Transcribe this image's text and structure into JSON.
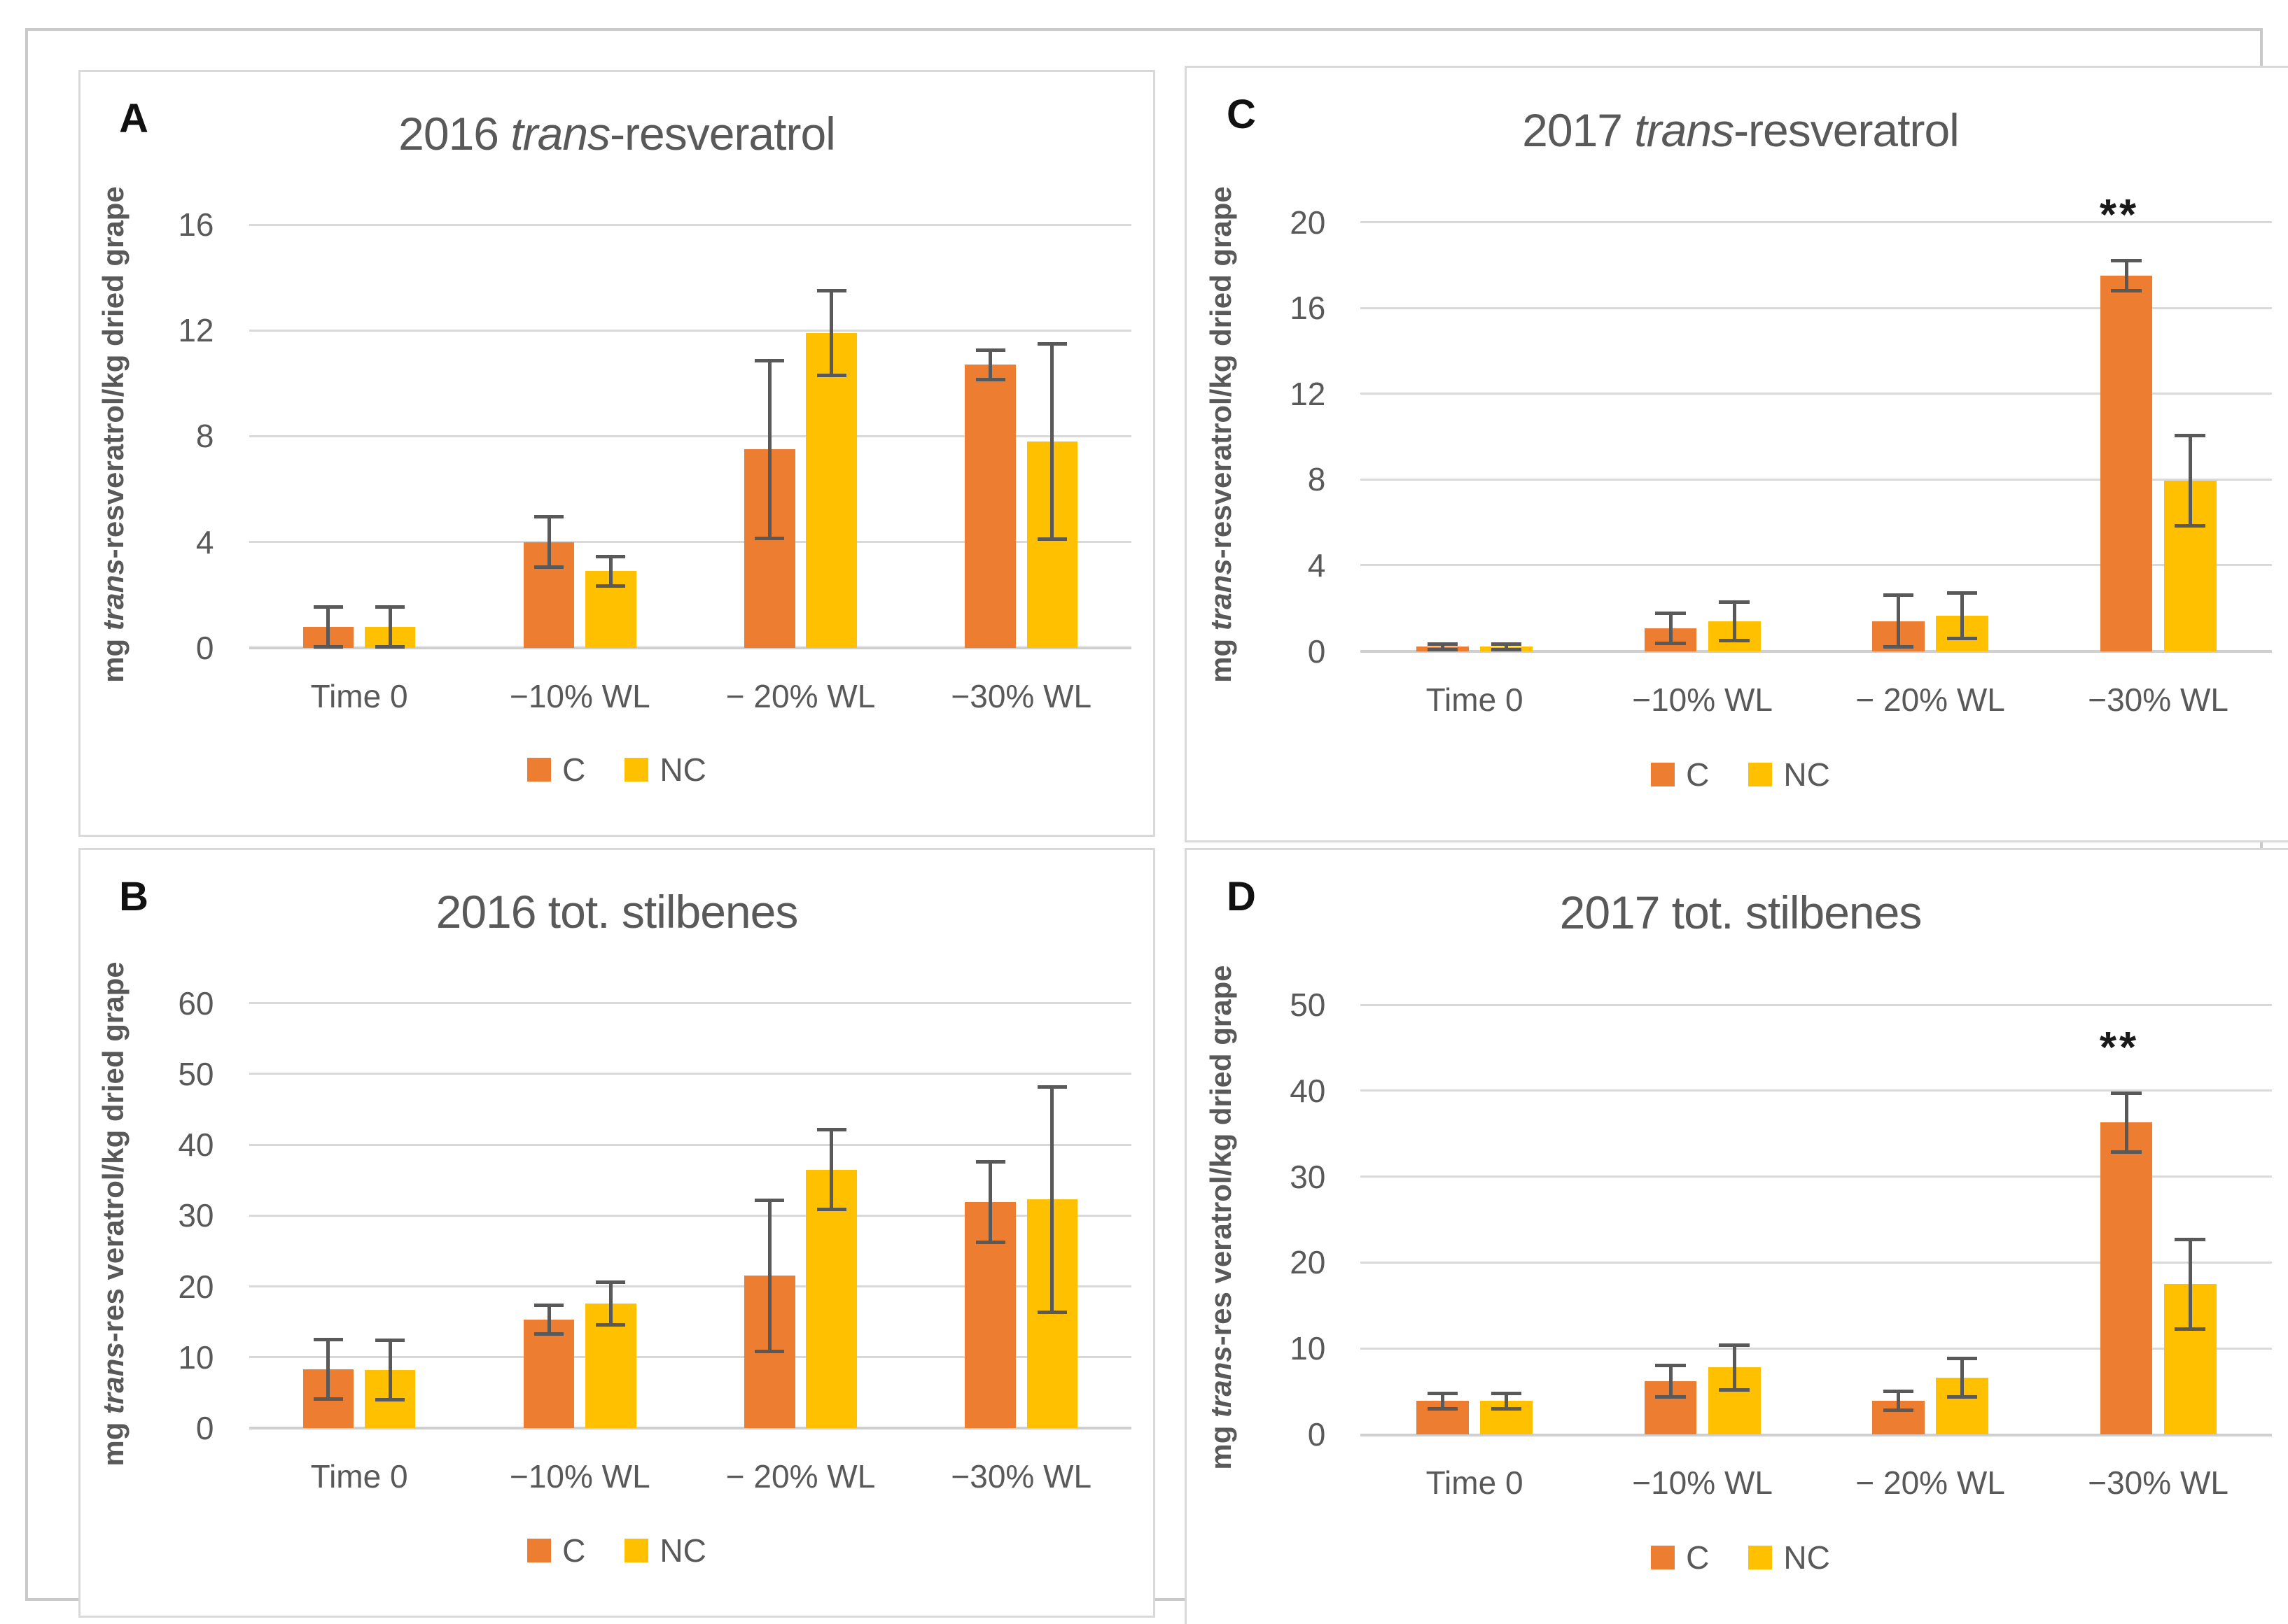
{
  "colors": {
    "series_c": "#ED7D31",
    "series_nc": "#FFC000",
    "error_bar": "#595959",
    "gridline": "#D9D9D9",
    "axis_text": "#595959",
    "panel_border": "#D9D9D9"
  },
  "chart_data": [
    {
      "panel_label": "A",
      "type": "bar",
      "title": "2016 trans-resveratrol",
      "title_prefix": "2016 ",
      "title_italic": "trans",
      "title_suffix": "-resveratrol",
      "ylabel": "mg trans-resveratrol/kg dried grape",
      "ylabel_prefix": "mg ",
      "ylabel_italic": "trans",
      "ylabel_suffix": "-resveratrol/kg dried grape",
      "categories": [
        "Time 0",
        "−10% WL",
        "− 20% WL",
        "−30% WL"
      ],
      "ylim": [
        0,
        16
      ],
      "yticks": [
        0,
        4,
        8,
        12,
        16
      ],
      "grid": true,
      "legend_position": "bottom",
      "series": [
        {
          "name": "C",
          "color": "#ED7D31",
          "values": [
            0.8,
            4.0,
            7.5,
            10.7
          ],
          "errors": [
            0.75,
            0.95,
            3.35,
            0.55
          ]
        },
        {
          "name": "NC",
          "color": "#FFC000",
          "values": [
            0.8,
            2.9,
            11.9,
            7.8
          ],
          "errors": [
            0.75,
            0.55,
            1.6,
            3.7
          ]
        }
      ],
      "annotations": []
    },
    {
      "panel_label": "B",
      "type": "bar",
      "title": "2016 tot. stilbenes",
      "title_prefix": "2016 tot. stilbenes",
      "title_italic": "",
      "title_suffix": "",
      "ylabel": "mg trans-res veratrol/kg dried grape",
      "ylabel_prefix": "mg ",
      "ylabel_italic": "trans",
      "ylabel_suffix": "-res veratrol/kg dried grape",
      "categories": [
        "Time 0",
        "−10% WL",
        "− 20% WL",
        "−30% WL"
      ],
      "ylim": [
        0,
        60
      ],
      "yticks": [
        0,
        10,
        20,
        30,
        40,
        50,
        60
      ],
      "grid": true,
      "legend_position": "bottom",
      "series": [
        {
          "name": "C",
          "color": "#ED7D31",
          "values": [
            8.3,
            15.3,
            21.5,
            31.9
          ],
          "errors": [
            4.2,
            2.0,
            10.7,
            5.7
          ]
        },
        {
          "name": "NC",
          "color": "#FFC000",
          "values": [
            8.2,
            17.6,
            36.5,
            32.3
          ],
          "errors": [
            4.2,
            3.0,
            5.6,
            15.9
          ]
        }
      ],
      "annotations": []
    },
    {
      "panel_label": "C",
      "type": "bar",
      "title": "2017 trans-resveratrol",
      "title_prefix": "2017 ",
      "title_italic": "trans",
      "title_suffix": "-resveratrol",
      "ylabel": "mg trans-resveratrol/kg dried grape",
      "ylabel_prefix": "mg ",
      "ylabel_italic": "trans",
      "ylabel_suffix": "-resveratrol/kg dried grape",
      "categories": [
        "Time 0",
        "−10% WL",
        "− 20% WL",
        "−30% WL"
      ],
      "ylim": [
        0,
        20
      ],
      "yticks": [
        0,
        4,
        8,
        12,
        16,
        20
      ],
      "grid": true,
      "legend_position": "bottom",
      "series": [
        {
          "name": "C",
          "color": "#ED7D31",
          "values": [
            0.2,
            1.05,
            1.4,
            17.5
          ],
          "errors": [
            0.12,
            0.7,
            1.2,
            0.7
          ]
        },
        {
          "name": "NC",
          "color": "#FFC000",
          "values": [
            0.2,
            1.4,
            1.65,
            7.95
          ],
          "errors": [
            0.12,
            0.9,
            1.05,
            2.1
          ]
        }
      ],
      "annotations": [
        {
          "text": "**",
          "category_index": 3,
          "series_index": 0
        }
      ]
    },
    {
      "panel_label": "D",
      "type": "bar",
      "title": "2017 tot. stilbenes",
      "title_prefix": "2017 tot. stilbenes",
      "title_italic": "",
      "title_suffix": "",
      "ylabel": "mg trans-res veratrol/kg dried grape",
      "ylabel_prefix": "mg ",
      "ylabel_italic": "trans",
      "ylabel_suffix": "-res veratrol/kg dried grape",
      "categories": [
        "Time 0",
        "−10% WL",
        "− 20% WL",
        "−30% WL"
      ],
      "ylim": [
        0,
        50
      ],
      "yticks": [
        0,
        10,
        20,
        30,
        40,
        50
      ],
      "grid": true,
      "legend_position": "bottom",
      "series": [
        {
          "name": "C",
          "color": "#ED7D31",
          "values": [
            3.9,
            6.2,
            3.9,
            36.3
          ],
          "errors": [
            0.9,
            1.8,
            1.1,
            3.4
          ]
        },
        {
          "name": "NC",
          "color": "#FFC000",
          "values": [
            3.9,
            7.8,
            6.6,
            17.5
          ],
          "errors": [
            0.9,
            2.6,
            2.2,
            5.2
          ]
        }
      ],
      "annotations": [
        {
          "text": "**",
          "category_index": 3,
          "series_index": 0
        }
      ]
    }
  ]
}
